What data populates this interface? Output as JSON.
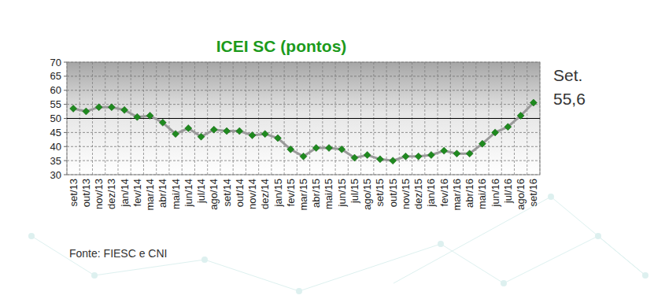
{
  "chart_data": {
    "type": "line",
    "title": "ICEI SC (pontos)",
    "categories": [
      "set/13",
      "out/13",
      "nov/13",
      "dez/13",
      "jan/14",
      "fev/14",
      "mar/14",
      "abr/14",
      "mai/14",
      "jun/14",
      "jul/14",
      "ago/14",
      "set/14",
      "out/14",
      "nov/14",
      "dez/14",
      "jan/15",
      "fev/15",
      "mar/15",
      "abr/15",
      "mai/15",
      "jun/15",
      "jul/15",
      "ago/15",
      "set/15",
      "out/15",
      "nov/15",
      "dez/15",
      "jan/16",
      "fev/16",
      "mar/16",
      "abr/16",
      "mai/16",
      "jun/16",
      "jul/16",
      "ago/16",
      "set/16"
    ],
    "values": [
      53.5,
      52.5,
      54,
      54,
      53,
      50.5,
      51,
      48.5,
      44.5,
      46.5,
      43.5,
      46,
      45.5,
      45.5,
      44,
      44.5,
      43,
      39,
      36.5,
      39.5,
      39.5,
      39,
      36,
      37,
      35.5,
      35,
      36.5,
      36.5,
      37,
      38.5,
      37.5,
      37.5,
      41,
      45,
      47,
      51,
      55.6
    ],
    "color": "#9a9a9a",
    "marker": "diamond",
    "ylim": [
      30,
      70
    ],
    "yticks": [
      30,
      35,
      40,
      45,
      50,
      55,
      60,
      65,
      70
    ],
    "grid": true,
    "reference_line": 50,
    "annotations": [
      "Set.",
      "55,6"
    ],
    "source": "Fonte: FIESC e CNI"
  }
}
